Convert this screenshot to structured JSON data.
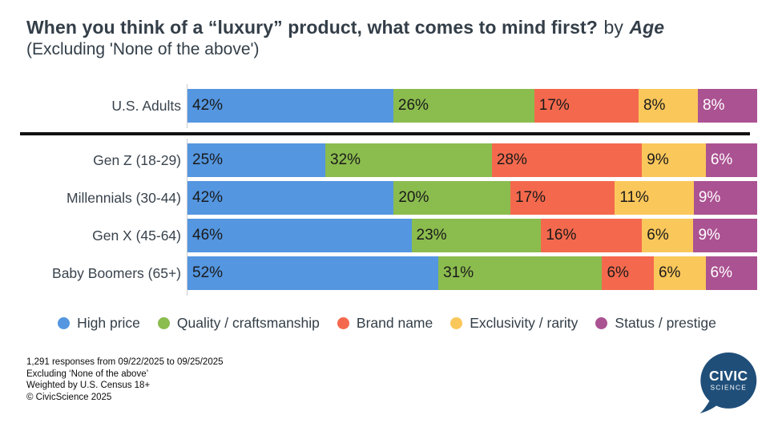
{
  "title": {
    "main": "When you think of a “luxury” product, what comes to mind first?",
    "connector": "by",
    "emphasis": "Age",
    "subtitle": "(Excluding 'None of the above')"
  },
  "chart_data": {
    "type": "bar",
    "variant": "horizontal-stacked",
    "value_suffix": "%",
    "categories": [
      "High price",
      "Quality / craftsmanship",
      "Brand name",
      "Exclusivity / rarity",
      "Status / prestige"
    ],
    "colors": [
      "#5496E0",
      "#8BBC4E",
      "#F4694D",
      "#FAC75B",
      "#AB5292"
    ],
    "label_colors": [
      "#1a1a1a",
      "#1a1a1a",
      "#1a1a1a",
      "#1a1a1a",
      "#ffffff"
    ],
    "legend_position": "bottom",
    "rows": [
      {
        "label": "U.S. Adults",
        "group": "overall",
        "values": [
          42,
          26,
          17,
          8,
          8
        ]
      },
      {
        "label": "Gen Z (18-29)",
        "group": "age",
        "values": [
          25,
          32,
          28,
          9,
          6
        ]
      },
      {
        "label": "Millennials (30-44)",
        "group": "age",
        "values": [
          42,
          20,
          17,
          11,
          9
        ]
      },
      {
        "label": "Gen X (45-64)",
        "group": "age",
        "values": [
          46,
          23,
          16,
          6,
          9
        ]
      },
      {
        "label": "Baby Boomers (65+)",
        "group": "age",
        "values": [
          52,
          31,
          6,
          6,
          6
        ]
      }
    ]
  },
  "footnotes": [
    "1,291 responses from 09/22/2025 to 09/25/2025",
    "Excluding ‘None of the above’",
    "Weighted by U.S. Census 18+",
    "© CivicScience 2025"
  ],
  "logo": {
    "line1": "CIVIC",
    "line2": "SCIENCE",
    "color": "#1F4E79",
    "text_color": "#ffffff"
  }
}
